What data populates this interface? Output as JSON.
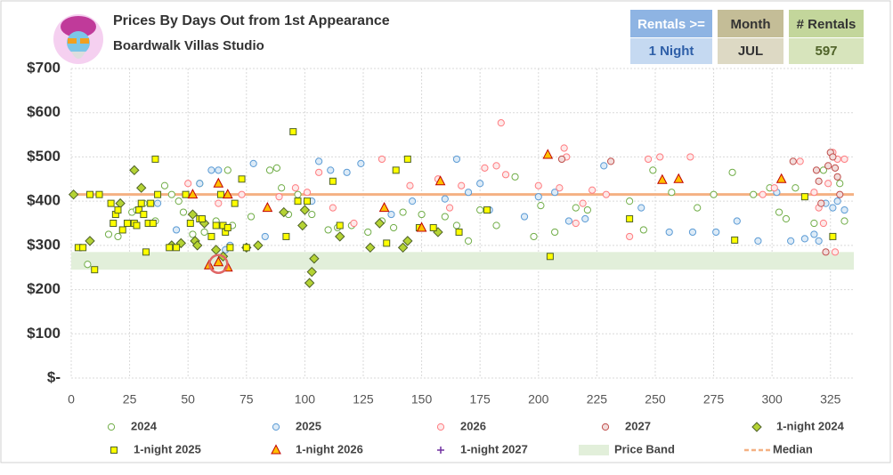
{
  "chart_data": {
    "type": "scatter",
    "title": "Prices By Days Out from 1st Appearance",
    "subtitle": "Boardwalk Villas Studio",
    "filters": [
      {
        "label": "Rentals >=",
        "value": "1 Night",
        "head_color": "#8eb4e3",
        "body_color": "#c5d9f1",
        "text_color": "#2e5fa8"
      },
      {
        "label": "Month",
        "value": "JUL",
        "head_color": "#c4bd97",
        "body_color": "#ddd9c4",
        "text_color": "#333333"
      },
      {
        "label": "# Rentals",
        "value": "597",
        "head_color": "#c3d69b",
        "body_color": "#d7e4bc",
        "text_color": "#4f6228"
      }
    ],
    "xlim": [
      0,
      335
    ],
    "xticks": [
      0,
      25,
      50,
      75,
      100,
      125,
      150,
      175,
      200,
      225,
      250,
      275,
      300,
      325
    ],
    "ylim": [
      0,
      700
    ],
    "yticks": [
      {
        "value": 0,
        "label": "$-"
      },
      {
        "value": 100,
        "label": "$100"
      },
      {
        "value": 200,
        "label": "$200"
      },
      {
        "value": 300,
        "label": "$300"
      },
      {
        "value": 400,
        "label": "$400"
      },
      {
        "value": 500,
        "label": "$500"
      },
      {
        "value": 600,
        "label": "$600"
      },
      {
        "value": 700,
        "label": "$700"
      }
    ],
    "grid": true,
    "series": [
      {
        "name": "2024",
        "marker": "circle",
        "color": "#70ad47",
        "fill": "#ffffff",
        "x": [
          4,
          7,
          16,
          20,
          26,
          28,
          31,
          36,
          40,
          43,
          46,
          48,
          52,
          55,
          57,
          62,
          67,
          69,
          77,
          85,
          88,
          90,
          93,
          97,
          103,
          110,
          114,
          120,
          127,
          133,
          138,
          142,
          150,
          160,
          165,
          170,
          175,
          182,
          190,
          198,
          201,
          207,
          216,
          221,
          239,
          245,
          249,
          257,
          268,
          275,
          283,
          292,
          299,
          303,
          306,
          310,
          318,
          322,
          329,
          331
        ],
        "values": [
          295,
          257,
          325,
          320,
          375,
          380,
          395,
          355,
          435,
          415,
          400,
          375,
          325,
          440,
          330,
          355,
          470,
          345,
          365,
          470,
          475,
          430,
          370,
          415,
          370,
          335,
          340,
          345,
          330,
          355,
          340,
          375,
          370,
          365,
          345,
          310,
          380,
          345,
          455,
          320,
          390,
          330,
          385,
          380,
          400,
          335,
          470,
          420,
          385,
          415,
          465,
          415,
          430,
          375,
          360,
          430,
          350,
          470,
          440,
          355
        ]
      },
      {
        "name": "2025",
        "marker": "circle",
        "color": "#5b9bd5",
        "fill": "#ddebf7",
        "x": [
          37,
          45,
          55,
          60,
          63,
          66,
          68,
          78,
          83,
          103,
          106,
          111,
          118,
          124,
          137,
          146,
          160,
          165,
          170,
          175,
          179,
          194,
          200,
          207,
          213,
          220,
          228,
          244,
          256,
          266,
          276,
          285,
          294,
          302,
          308,
          314,
          318,
          320,
          323,
          326,
          328,
          331
        ],
        "values": [
          395,
          335,
          440,
          470,
          470,
          290,
          300,
          485,
          320,
          400,
          490,
          470,
          465,
          485,
          370,
          400,
          405,
          495,
          420,
          440,
          380,
          365,
          410,
          420,
          355,
          360,
          480,
          385,
          330,
          330,
          330,
          355,
          310,
          420,
          310,
          315,
          325,
          310,
          395,
          385,
          400,
          380
        ]
      },
      {
        "name": "2026",
        "marker": "circle",
        "color": "#ff7c80",
        "fill": "#fde9e9",
        "x": [
          50,
          63,
          73,
          89,
          96,
          101,
          106,
          112,
          121,
          133,
          145,
          157,
          162,
          167,
          177,
          182,
          184,
          186,
          200,
          209,
          211,
          212,
          216,
          219,
          223,
          229,
          239,
          247,
          252,
          265,
          296,
          301,
          312,
          318,
          320,
          322,
          324,
          326,
          327,
          328,
          331
        ],
        "values": [
          440,
          395,
          415,
          410,
          430,
          420,
          465,
          385,
          350,
          495,
          435,
          450,
          385,
          435,
          475,
          480,
          577,
          460,
          435,
          430,
          520,
          500,
          350,
          395,
          425,
          415,
          320,
          495,
          500,
          500,
          415,
          430,
          490,
          420,
          385,
          350,
          440,
          510,
          285,
          495,
          495
        ]
      },
      {
        "name": "2027",
        "marker": "circle",
        "color": "#c0504d",
        "fill": "#f2dcdb",
        "x": [
          210,
          231,
          309,
          319,
          320,
          321,
          323,
          324,
          325,
          326,
          327,
          328,
          329
        ],
        "values": [
          495,
          490,
          490,
          470,
          445,
          395,
          285,
          480,
          510,
          500,
          475,
          455,
          415
        ]
      },
      {
        "name": "1-night 2024",
        "marker": "diamond",
        "color": "#4f6228",
        "fill": "#b5d334",
        "x": [
          1,
          8,
          21,
          27,
          30,
          43,
          47,
          52,
          53,
          54,
          57,
          62,
          65,
          75,
          80,
          91,
          99,
          100,
          102,
          103,
          104,
          115,
          128,
          132,
          142,
          144,
          157
        ],
        "values": [
          415,
          310,
          395,
          470,
          430,
          300,
          305,
          370,
          310,
          300,
          350,
          290,
          275,
          295,
          300,
          375,
          345,
          380,
          215,
          240,
          270,
          320,
          295,
          350,
          295,
          310,
          330
        ]
      },
      {
        "name": "1-night 2025",
        "marker": "square",
        "color": "#4f6228",
        "fill": "#ffff00",
        "x": [
          3,
          5,
          8,
          10,
          12,
          17,
          18,
          19,
          20,
          22,
          24,
          27,
          28,
          29,
          30,
          31,
          32,
          33,
          34,
          35,
          36,
          37,
          42,
          45,
          49,
          51,
          55,
          56,
          60,
          62,
          64,
          65,
          66,
          67,
          68,
          70,
          73,
          75,
          92,
          95,
          97,
          101,
          112,
          115,
          135,
          139,
          144,
          149,
          155,
          166,
          178,
          205,
          239,
          284,
          314,
          326
        ],
        "values": [
          295,
          295,
          415,
          245,
          415,
          395,
          350,
          370,
          380,
          335,
          350,
          350,
          345,
          380,
          395,
          370,
          285,
          350,
          395,
          350,
          495,
          415,
          295,
          295,
          415,
          350,
          360,
          360,
          320,
          345,
          415,
          345,
          330,
          340,
          295,
          395,
          450,
          295,
          320,
          557,
          400,
          400,
          445,
          345,
          305,
          470,
          495,
          340,
          340,
          330,
          380,
          275,
          360,
          312,
          410,
          320
        ]
      },
      {
        "name": "1-night 2026",
        "marker": "triangle",
        "color": "#c00000",
        "fill": "#ffc000",
        "x": [
          52,
          59,
          63,
          63,
          67,
          67,
          84,
          134,
          150,
          158,
          204,
          253,
          260,
          304
        ],
        "values": [
          415,
          255,
          262,
          440,
          250,
          415,
          385,
          385,
          340,
          445,
          505,
          448,
          450,
          450
        ]
      },
      {
        "name": "1-night 2027",
        "marker": "plus",
        "color": "#7030a0",
        "fill": "#7030a0",
        "x": [],
        "values": []
      }
    ],
    "price_band": {
      "name": "Price Band",
      "color": "#e2efda",
      "range": [
        245,
        285
      ]
    },
    "median": {
      "name": "Median",
      "color": "#f4b183",
      "value": 415
    }
  }
}
